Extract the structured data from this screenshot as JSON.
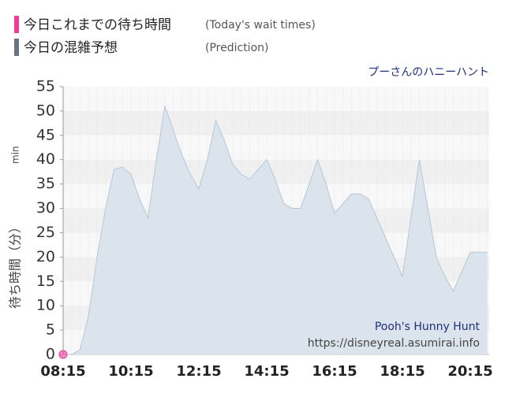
{
  "chart_data": {
    "type": "area",
    "subtitle": "プーさんのハニーハント",
    "ylabel": "待ち時間（分）",
    "ylabel_unit": "min",
    "watermark": [
      "Pooh's Hunny Hunt",
      "https://disneyreal.asumirai.info"
    ],
    "categories": [
      "08:15",
      null,
      null,
      null,
      null,
      null,
      null,
      null,
      "10:15",
      null,
      null,
      null,
      null,
      null,
      null,
      null,
      "12:15",
      null,
      null,
      null,
      null,
      null,
      null,
      null,
      "14:15",
      null,
      null,
      null,
      null,
      null,
      null,
      null,
      "16:15",
      null,
      null,
      null,
      null,
      null,
      null,
      null,
      "18:15",
      null,
      null,
      null,
      null,
      null,
      null,
      null,
      "20:15",
      null,
      null
    ],
    "series": [
      {
        "name": "今日これまでの待ち時間",
        "name_note": "(Today's wait times)",
        "color": "#ee3d96",
        "style": "point",
        "values": [
          0,
          null,
          null,
          null,
          null,
          null,
          null,
          null,
          null,
          null,
          null,
          null,
          null,
          null,
          null,
          null,
          null,
          null,
          null,
          null,
          null,
          null,
          null,
          null,
          null,
          null,
          null,
          null,
          null,
          null,
          null,
          null,
          null,
          null,
          null,
          null,
          null,
          null,
          null,
          null,
          null,
          null,
          null,
          null,
          null,
          null,
          null,
          null,
          null,
          null,
          null
        ]
      },
      {
        "name": "今日の混雑予想",
        "name_note": "(Prediction)",
        "color": "#6b7280",
        "fill": "#dbe4ec",
        "style": "area",
        "values": [
          0,
          0,
          1,
          8,
          20,
          30,
          38,
          38.5,
          37,
          32,
          28,
          40,
          51,
          46,
          41,
          37,
          34,
          40,
          48,
          44,
          39,
          37,
          36,
          38,
          40,
          36,
          31,
          30,
          30,
          35,
          40,
          35,
          29,
          31,
          33,
          33,
          32,
          28,
          24,
          20,
          16,
          28,
          40,
          30,
          20,
          16,
          13,
          17,
          21,
          21,
          21
        ]
      }
    ],
    "ylim": [
      0,
      55
    ],
    "yticks": [
      0,
      5,
      10,
      15,
      20,
      25,
      30,
      35,
      40,
      45,
      50,
      55
    ],
    "grid": true
  }
}
